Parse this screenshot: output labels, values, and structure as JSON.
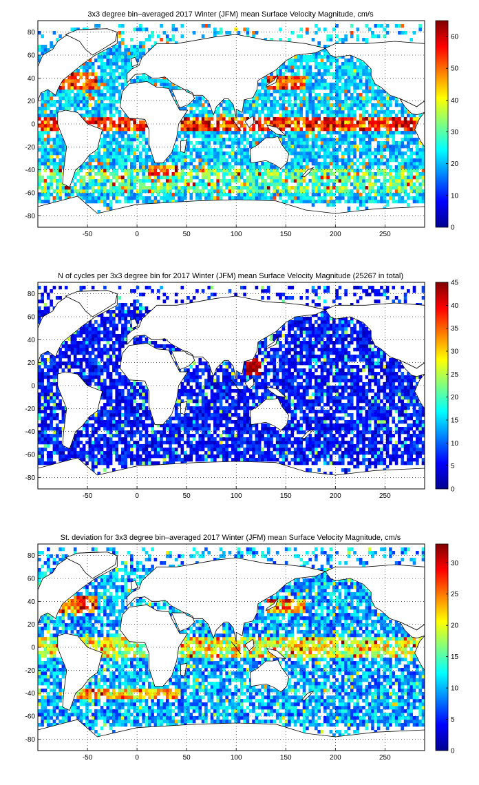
{
  "chart_data": [
    {
      "type": "heatmap",
      "title": "3x3 degree bin–averaged 2017 Winter (JFM) mean Surface Velocity Magnitude, cm/s",
      "xlabel": "",
      "ylabel": "",
      "xlim": [
        -100,
        290
      ],
      "ylim": [
        -90,
        90
      ],
      "xticks": [
        "-50",
        "0",
        "50",
        "100",
        "150",
        "200",
        "250"
      ],
      "yticks": [
        "80",
        "60",
        "40",
        "20",
        "0",
        "-20",
        "-40",
        "-60",
        "-80"
      ],
      "colorbar": {
        "min": 0,
        "max": 65,
        "ticks": [
          "0",
          "10",
          "20",
          "30",
          "40",
          "50",
          "60"
        ]
      },
      "grid": true,
      "colormap": "jet",
      "bin_size_deg": 3,
      "seed": 17
    },
    {
      "type": "heatmap",
      "title": "N of cycles per 3x3 degree bin for 2017 Winter (JFM) mean Surface Velocity Magnitude (25267 in total)",
      "xlabel": "",
      "ylabel": "",
      "xlim": [
        -100,
        290
      ],
      "ylim": [
        -90,
        90
      ],
      "xticks": [
        "-50",
        "0",
        "50",
        "100",
        "150",
        "200",
        "250"
      ],
      "yticks": [
        "80",
        "60",
        "40",
        "20",
        "0",
        "-20",
        "-40",
        "-60",
        "-80"
      ],
      "colorbar": {
        "min": 0,
        "max": 45,
        "ticks": [
          "0",
          "5",
          "10",
          "15",
          "20",
          "25",
          "30",
          "35",
          "40",
          "45"
        ]
      },
      "grid": true,
      "colormap": "jet",
      "bin_size_deg": 3,
      "seed": 29
    },
    {
      "type": "heatmap",
      "title": "St. deviation for 3x3 degree bin–averaged 2017 Winter (JFM) mean Surface Velocity Magnitude, cm/s",
      "xlabel": "",
      "ylabel": "",
      "xlim": [
        -100,
        290
      ],
      "ylim": [
        -90,
        90
      ],
      "xticks": [
        "-50",
        "0",
        "50",
        "100",
        "150",
        "200",
        "250"
      ],
      "yticks": [
        "80",
        "60",
        "40",
        "20",
        "0",
        "-20",
        "-40",
        "-60",
        "-80"
      ],
      "colorbar": {
        "min": 0,
        "max": 33,
        "ticks": [
          "0",
          "5",
          "10",
          "15",
          "20",
          "25",
          "30"
        ]
      },
      "grid": true,
      "colormap": "jet",
      "bin_size_deg": 3,
      "seed": 41
    }
  ],
  "colors": {
    "land": "#ffffff",
    "coast": "#000000",
    "grid": "#000000",
    "background": "#ffffff"
  }
}
